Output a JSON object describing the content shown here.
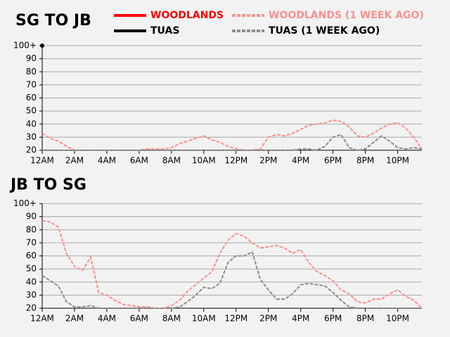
{
  "chart_data": [
    {
      "type": "line",
      "title": "SG TO JB",
      "x": [
        0,
        0.5,
        1,
        1.5,
        2,
        2.5,
        3,
        3.5,
        4,
        4.5,
        5,
        5.5,
        6,
        6.5,
        7,
        7.5,
        8,
        8.5,
        9,
        9.5,
        10,
        10.5,
        11,
        11.5,
        12,
        12.5,
        13,
        13.5,
        14,
        14.5,
        15,
        15.5,
        16,
        16.5,
        17,
        17.5,
        18,
        18.5,
        19,
        19.5,
        20,
        20.5,
        21,
        21.5,
        22,
        22.5,
        23,
        23.5
      ],
      "xlim": [
        0,
        23.5
      ],
      "xticks": [
        {
          "value": 0,
          "label": "12AM"
        },
        {
          "value": 2,
          "label": "2AM"
        },
        {
          "value": 4,
          "label": "4AM"
        },
        {
          "value": 6,
          "label": "6AM"
        },
        {
          "value": 8,
          "label": "8AM"
        },
        {
          "value": 10,
          "label": "10AM"
        },
        {
          "value": 12,
          "label": "12PM"
        },
        {
          "value": 14,
          "label": "2PM"
        },
        {
          "value": 16,
          "label": "4PM"
        },
        {
          "value": 18,
          "label": "6PM"
        },
        {
          "value": 20,
          "label": "8PM"
        },
        {
          "value": 22,
          "label": "10PM"
        }
      ],
      "ylim": [
        20,
        100
      ],
      "yticks": [
        20,
        30,
        40,
        50,
        60,
        70,
        80,
        90,
        {
          "value": 100,
          "label": "100+"
        }
      ],
      "grid": true,
      "series": [
        {
          "name": "WOODLANDS",
          "color": "#ff0000",
          "dashed": false,
          "values": [
            null,
            null,
            null,
            null,
            null,
            null,
            null,
            null,
            null,
            null,
            null,
            null,
            null,
            null,
            null,
            null,
            null,
            null,
            null,
            null,
            null,
            null,
            null,
            null,
            null,
            null,
            null,
            null,
            null,
            null,
            null,
            null,
            null,
            null,
            null,
            null,
            null,
            null,
            null,
            null,
            null,
            null,
            null,
            null,
            null,
            null,
            null,
            null
          ]
        },
        {
          "name": "WOODLANDS (1 WEEK AGO)",
          "color": "#f4928f",
          "dashed": true,
          "values": [
            33,
            29,
            27,
            23,
            20,
            20,
            20,
            20,
            20,
            20,
            20,
            20,
            20,
            21,
            21,
            21,
            22,
            25,
            27,
            29,
            31,
            28,
            26,
            23,
            21,
            20,
            20,
            21,
            30,
            32,
            31,
            33,
            36,
            39,
            40,
            41,
            43,
            42,
            38,
            31,
            30,
            33,
            37,
            40,
            41,
            37,
            30,
            21
          ]
        },
        {
          "name": "TUAS",
          "color": "#000000",
          "dashed": false,
          "values": [
            100,
            null,
            null,
            null,
            null,
            null,
            null,
            null,
            null,
            null,
            null,
            null,
            null,
            null,
            null,
            null,
            null,
            null,
            null,
            null,
            null,
            null,
            null,
            null,
            null,
            null,
            null,
            null,
            null,
            null,
            null,
            null,
            null,
            null,
            null,
            null,
            null,
            null,
            null,
            null,
            null,
            null,
            null,
            null,
            null,
            null,
            null,
            null
          ]
        },
        {
          "name": "TUAS (1 WEEK AGO)",
          "color": "#8c8c8c",
          "dashed": true,
          "values": [
            20,
            20,
            20,
            20,
            20,
            20,
            20,
            20,
            20,
            20,
            20,
            20,
            20,
            20,
            20,
            20,
            20,
            20,
            20,
            20,
            20,
            20,
            20,
            20,
            20,
            20,
            20,
            20,
            20,
            20,
            20,
            20,
            21,
            21,
            20,
            23,
            30,
            32,
            22,
            20,
            21,
            26,
            31,
            27,
            22,
            21,
            22,
            21
          ]
        }
      ]
    },
    {
      "type": "line",
      "title": "JB TO SG",
      "x": [
        0,
        0.5,
        1,
        1.5,
        2,
        2.5,
        3,
        3.5,
        4,
        4.5,
        5,
        5.5,
        6,
        6.5,
        7,
        7.5,
        8,
        8.5,
        9,
        9.5,
        10,
        10.5,
        11,
        11.5,
        12,
        12.5,
        13,
        13.5,
        14,
        14.5,
        15,
        15.5,
        16,
        16.5,
        17,
        17.5,
        18,
        18.5,
        19,
        19.5,
        20,
        20.5,
        21,
        21.5,
        22,
        22.5,
        23,
        23.5
      ],
      "xlim": [
        0,
        23.5
      ],
      "xticks": [
        {
          "value": 0,
          "label": "12AM"
        },
        {
          "value": 2,
          "label": "2AM"
        },
        {
          "value": 4,
          "label": "4AM"
        },
        {
          "value": 6,
          "label": "6AM"
        },
        {
          "value": 8,
          "label": "8AM"
        },
        {
          "value": 10,
          "label": "10AM"
        },
        {
          "value": 12,
          "label": "12PM"
        },
        {
          "value": 14,
          "label": "2PM"
        },
        {
          "value": 16,
          "label": "4PM"
        },
        {
          "value": 18,
          "label": "6PM"
        },
        {
          "value": 20,
          "label": "8PM"
        },
        {
          "value": 22,
          "label": "10PM"
        }
      ],
      "ylim": [
        20,
        100
      ],
      "yticks": [
        20,
        30,
        40,
        50,
        60,
        70,
        80,
        90,
        {
          "value": 100,
          "label": "100+"
        }
      ],
      "grid": true,
      "series": [
        {
          "color": "#f4928f",
          "dashed": true,
          "values": [
            87,
            86,
            82,
            62,
            52,
            49,
            59,
            32,
            30,
            26,
            23,
            22,
            21,
            21,
            20,
            20,
            22,
            26,
            33,
            38,
            43,
            48,
            62,
            72,
            77,
            75,
            70,
            66,
            67,
            68,
            66,
            62,
            65,
            55,
            48,
            45,
            41,
            34,
            31,
            25,
            24,
            27,
            27,
            31,
            34,
            29,
            26,
            20
          ]
        },
        {
          "color": "#8c8c8c",
          "dashed": true,
          "values": [
            45,
            41,
            37,
            25,
            21,
            21,
            22,
            20,
            20,
            20,
            20,
            20,
            20,
            20,
            20,
            20,
            20,
            21,
            25,
            30,
            36,
            35,
            39,
            55,
            60,
            60,
            63,
            42,
            34,
            27,
            27,
            31,
            38,
            39,
            38,
            37,
            32,
            26,
            21,
            20,
            20,
            20,
            20,
            20,
            20,
            20,
            20,
            20
          ]
        }
      ]
    }
  ]
}
